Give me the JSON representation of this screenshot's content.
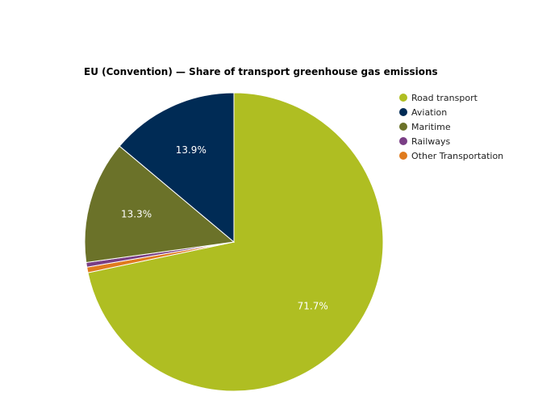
{
  "chart_data": {
    "type": "pie",
    "title": "EU (Convention) — Share of transport greenhouse gas emissions",
    "legend_position": "top-right",
    "slices": [
      {
        "name": "Road transport",
        "value": 71.7,
        "label": "71.7%",
        "color": "#afbe22"
      },
      {
        "name": "Other Transportation",
        "value": 0.6,
        "label": "",
        "color": "#e07b1e"
      },
      {
        "name": "Railways",
        "value": 0.5,
        "label": "",
        "color": "#7a3e85"
      },
      {
        "name": "Maritime",
        "value": 13.3,
        "label": "13.3%",
        "color": "#6b7229"
      },
      {
        "name": "Aviation",
        "value": 13.9,
        "label": "13.9%",
        "color": "#002b55"
      }
    ],
    "legend_order": [
      "Road transport",
      "Aviation",
      "Maritime",
      "Railways",
      "Other Transportation"
    ]
  }
}
